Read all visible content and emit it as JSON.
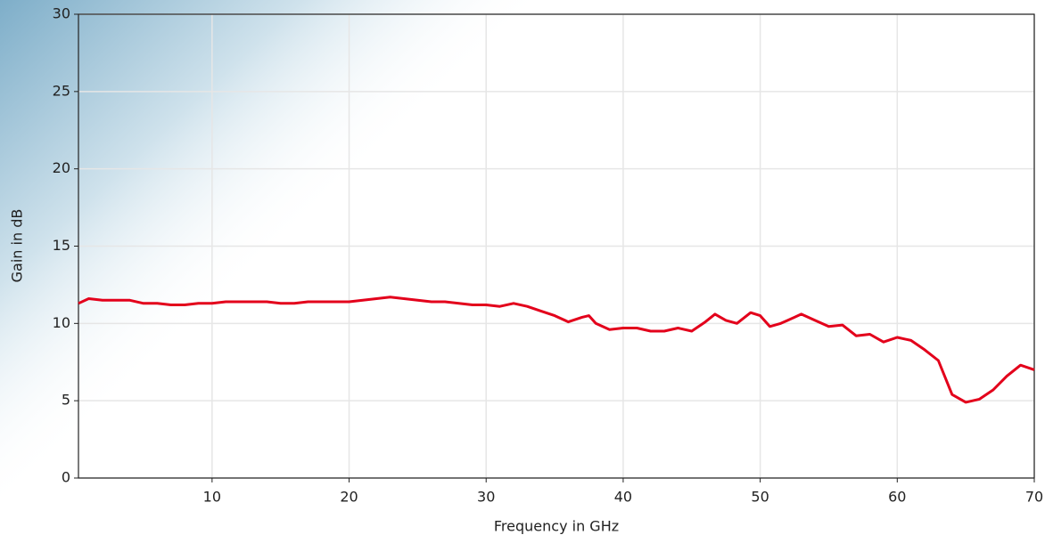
{
  "chart_data": {
    "type": "line",
    "x_label": "Frequency in GHz",
    "y_label": "Gain in dB",
    "x": [
      0.25,
      1,
      2,
      3,
      4,
      5,
      6,
      7,
      8,
      9,
      10,
      11,
      12,
      13,
      14,
      15,
      16,
      17,
      18,
      19,
      20,
      21,
      22,
      23,
      24,
      25,
      26,
      27,
      28,
      29,
      30,
      31,
      32,
      33,
      34,
      35,
      36,
      37,
      37.5,
      38,
      39,
      40,
      41,
      42,
      43,
      44,
      45,
      46,
      46.7,
      47.5,
      48.3,
      49.3,
      50,
      50.7,
      51.5,
      52,
      53,
      54,
      55,
      56,
      57,
      58,
      59,
      60,
      61,
      62,
      63,
      64,
      65,
      66,
      67,
      68,
      69,
      70
    ],
    "series": [
      {
        "color": "#e3001b",
        "values": [
          11.3,
          11.6,
          11.5,
          11.5,
          11.5,
          11.3,
          11.3,
          11.2,
          11.2,
          11.3,
          11.3,
          11.4,
          11.4,
          11.4,
          11.4,
          11.3,
          11.3,
          11.4,
          11.4,
          11.4,
          11.4,
          11.5,
          11.6,
          11.7,
          11.6,
          11.5,
          11.4,
          11.4,
          11.3,
          11.2,
          11.2,
          11.1,
          11.3,
          11.1,
          10.8,
          10.5,
          10.1,
          10.4,
          10.5,
          10.0,
          9.6,
          9.7,
          9.7,
          9.5,
          9.5,
          9.7,
          9.5,
          10.1,
          10.6,
          10.2,
          10.0,
          10.7,
          10.5,
          9.8,
          10.0,
          10.2,
          10.6,
          10.2,
          9.8,
          9.9,
          9.2,
          9.3,
          8.8,
          9.1,
          8.9,
          8.3,
          7.6,
          5.4,
          4.9,
          5.1,
          5.7,
          6.6,
          7.3,
          7.0
        ]
      }
    ],
    "xlim": [
      0.25,
      70
    ],
    "xticks": [
      10,
      20,
      30,
      40,
      50,
      60,
      70
    ],
    "ylim": [
      0,
      30
    ],
    "yticks": [
      0,
      5,
      10,
      15,
      20,
      25,
      30
    ],
    "grid": true
  }
}
